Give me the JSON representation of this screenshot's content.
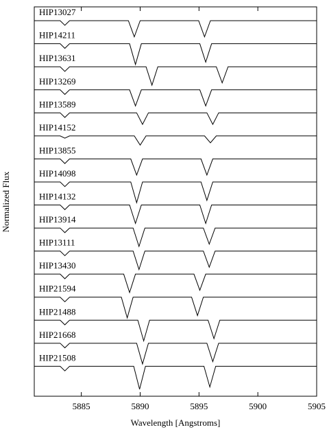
{
  "chart_data": {
    "type": "line",
    "xlabel": "Wavelength [Angstroms]",
    "ylabel": "Normalized Flux",
    "xlim": [
      5881,
      5905
    ],
    "xticks": [
      5885,
      5890,
      5895,
      5900,
      5905
    ],
    "ylim": [
      -0.3,
      16.6
    ],
    "series": [
      {
        "name": "HIP13027",
        "color": "#000000",
        "x": [
          5881,
          5883.2,
          5883.6,
          5884,
          5889,
          5889.5,
          5890,
          5894.97,
          5895.47,
          5895.97,
          5905
        ],
        "values": [
          16,
          16,
          15.8,
          16,
          16,
          15.3,
          16,
          16,
          15.3,
          16,
          16
        ]
      },
      {
        "name": "HIP14211",
        "color": "#000000",
        "x": [
          5881,
          5883.2,
          5883.6,
          5884,
          5889.1,
          5889.6,
          5890.1,
          5895.07,
          5895.57,
          5896.07,
          5905
        ],
        "values": [
          15,
          15,
          14.8,
          15,
          15,
          14.1,
          15,
          15,
          14.2,
          15,
          15
        ]
      },
      {
        "name": "HIP13631",
        "color": "#000000",
        "x": [
          5881,
          5883.2,
          5883.6,
          5884,
          5890.5,
          5891,
          5891.5,
          5896.47,
          5896.97,
          5897.47,
          5905
        ],
        "values": [
          14,
          14,
          13.8,
          14,
          14,
          13.2,
          14,
          14,
          13.3,
          14,
          14
        ]
      },
      {
        "name": "HIP13269",
        "color": "#000000",
        "x": [
          5881,
          5883.2,
          5883.6,
          5884,
          5889.1,
          5889.6,
          5890.1,
          5895.07,
          5895.57,
          5896.07,
          5905
        ],
        "values": [
          13,
          13,
          12.8,
          13,
          13,
          12.3,
          13,
          13,
          12.3,
          13,
          13
        ]
      },
      {
        "name": "HIP13589",
        "color": "#000000",
        "x": [
          5881,
          5883.2,
          5883.6,
          5884,
          5889.7,
          5890.2,
          5890.7,
          5895.67,
          5896.17,
          5896.67,
          5905
        ],
        "values": [
          12,
          12,
          11.8,
          12,
          12,
          11.5,
          12,
          12,
          11.5,
          12,
          12
        ]
      },
      {
        "name": "HIP14152",
        "color": "#000000",
        "x": [
          5881,
          5883.2,
          5883.6,
          5884,
          5889.5,
          5890,
          5890.5,
          5895.47,
          5895.97,
          5896.47,
          5905
        ],
        "values": [
          11,
          11,
          10.9,
          11,
          11,
          10.6,
          11,
          11,
          10.7,
          11,
          11
        ]
      },
      {
        "name": "HIP13855",
        "color": "#000000",
        "x": [
          5881,
          5883.2,
          5883.6,
          5884,
          5889.2,
          5889.7,
          5890.2,
          5895.17,
          5895.67,
          5896.17,
          5905
        ],
        "values": [
          10,
          10,
          9.8,
          10,
          10,
          9.3,
          10,
          10,
          9.3,
          10,
          10
        ]
      },
      {
        "name": "HIP14098",
        "color": "#000000",
        "x": [
          5881,
          5883.2,
          5883.6,
          5884,
          5889.2,
          5889.7,
          5890.2,
          5895.17,
          5895.67,
          5896.17,
          5905
        ],
        "values": [
          9,
          9,
          8.8,
          9,
          9,
          8.1,
          9,
          9,
          8.2,
          9,
          9
        ]
      },
      {
        "name": "HIP14132",
        "color": "#000000",
        "x": [
          5881,
          5883.2,
          5883.6,
          5884,
          5889.1,
          5889.6,
          5890.1,
          5895.07,
          5895.57,
          5896.07,
          5905
        ],
        "values": [
          8,
          8,
          7.8,
          8,
          8,
          7.2,
          8,
          8,
          7.2,
          8,
          8
        ]
      },
      {
        "name": "HIP13914",
        "color": "#000000",
        "x": [
          5881,
          5883.2,
          5883.6,
          5884,
          5889.4,
          5889.9,
          5890.4,
          5895.37,
          5895.87,
          5896.37,
          5905
        ],
        "values": [
          7,
          7,
          6.8,
          7,
          7,
          6.2,
          7,
          7,
          6.3,
          7,
          7
        ]
      },
      {
        "name": "HIP13111",
        "color": "#000000",
        "x": [
          5881,
          5883.2,
          5883.6,
          5884,
          5889.4,
          5889.9,
          5890.4,
          5895.37,
          5895.87,
          5896.37,
          5905
        ],
        "values": [
          6,
          6,
          5.8,
          6,
          6,
          5.2,
          6,
          6,
          5.3,
          6,
          6
        ]
      },
      {
        "name": "HIP13430",
        "color": "#000000",
        "x": [
          5881,
          5883.2,
          5883.6,
          5884,
          5888.6,
          5889.1,
          5889.6,
          5894.57,
          5895.07,
          5895.57,
          5905
        ],
        "values": [
          5,
          5,
          4.8,
          5,
          5,
          4.2,
          5,
          5,
          4.3,
          5,
          5
        ]
      },
      {
        "name": "HIP21594",
        "color": "#000000",
        "x": [
          5881,
          5883.2,
          5883.6,
          5884,
          5888.4,
          5888.9,
          5889.4,
          5894.37,
          5894.87,
          5895.37,
          5905
        ],
        "values": [
          4,
          4,
          3.8,
          4,
          4,
          3.1,
          4,
          4,
          3.2,
          4,
          4
        ]
      },
      {
        "name": "HIP21488",
        "color": "#000000",
        "x": [
          5881,
          5883.2,
          5883.6,
          5884,
          5889.8,
          5890.3,
          5890.8,
          5895.77,
          5896.27,
          5896.77,
          5905
        ],
        "values": [
          3,
          3,
          2.8,
          3,
          3,
          2.1,
          3,
          3,
          2.2,
          3,
          3
        ]
      },
      {
        "name": "HIP21668",
        "color": "#000000",
        "x": [
          5881,
          5883.2,
          5883.6,
          5884,
          5889.7,
          5890.2,
          5890.7,
          5895.67,
          5896.17,
          5896.67,
          5905
        ],
        "values": [
          2,
          2,
          1.8,
          2,
          2,
          1.1,
          2,
          2,
          1.2,
          2,
          2
        ]
      },
      {
        "name": "HIP21508",
        "color": "#000000",
        "x": [
          5881,
          5883.2,
          5883.6,
          5884,
          5889.45,
          5889.95,
          5890.45,
          5895.42,
          5895.92,
          5896.42,
          5905
        ],
        "values": [
          1,
          1,
          0.8,
          1,
          1,
          0,
          1,
          1,
          0.1,
          1,
          1
        ]
      }
    ]
  }
}
